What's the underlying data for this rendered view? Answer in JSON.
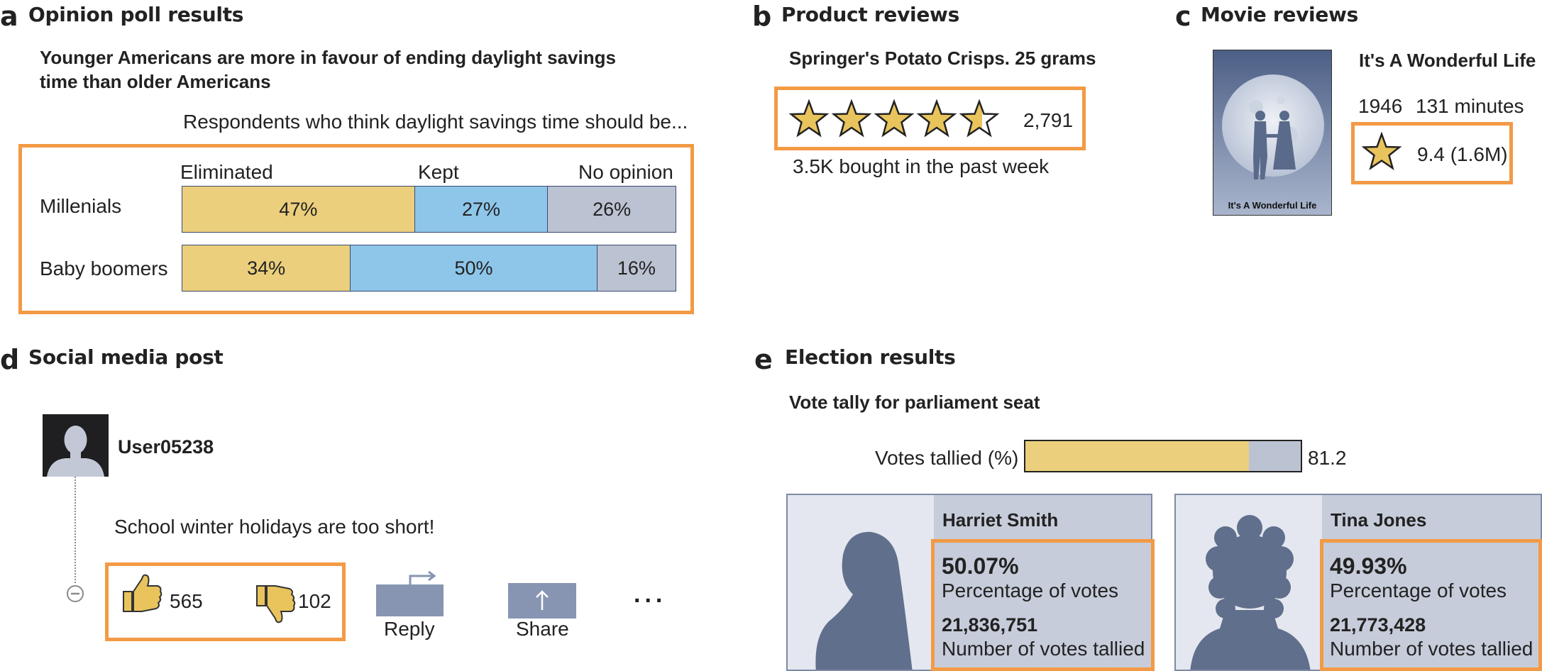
{
  "panels": {
    "a": {
      "letter": "a",
      "title": "Opinion poll results"
    },
    "b": {
      "letter": "b",
      "title": "Product reviews"
    },
    "c": {
      "letter": "c",
      "title": "Movie reviews"
    },
    "d": {
      "letter": "d",
      "title": "Social media post"
    },
    "e": {
      "letter": "e",
      "title": "Election results"
    }
  },
  "poll": {
    "headline_1": "Younger Americans are more in favour of ending daylight savings",
    "headline_2": "time than older Americans",
    "subtitle": "Respondents who think daylight savings time should be...",
    "columns": [
      "Eliminated",
      "Kept",
      "No opinion"
    ],
    "rows": [
      {
        "label": "Millenials",
        "values": [
          47,
          27,
          26
        ],
        "texts": [
          "47%",
          "27%",
          "26%"
        ]
      },
      {
        "label": "Baby boomers",
        "values": [
          34,
          50,
          16
        ],
        "texts": [
          "34%",
          "50%",
          "16%"
        ]
      }
    ],
    "colors": {
      "eliminated": "#EBCF7C",
      "kept": "#8EC6EA",
      "no_opinion": "#BBC2D2"
    }
  },
  "product": {
    "name": "Springer's Potato Crisps. 25 grams",
    "rating_stars": 4.5,
    "review_count": "2,791",
    "bought": "3.5K bought in the past week"
  },
  "movie": {
    "title": "It's A Wonderful Life",
    "year": "1946",
    "runtime": "131 minutes",
    "rating": "9.4 (1.6M)",
    "poster_caption": "It's A Wonderful Life"
  },
  "social": {
    "username": "User05238",
    "post_text": "School winter holidays are too short!",
    "likes": "565",
    "dislikes": "102",
    "reply_label": "Reply",
    "share_label": "Share",
    "more_label": "..."
  },
  "election": {
    "subtitle": "Vote tally for parliament seat",
    "tallied_label": "Votes tallied (%)",
    "tallied_value": 81.2,
    "tallied_text": "81.2",
    "candidates": [
      {
        "name": "Harriet Smith",
        "pct": "50.07%",
        "pct_label": "Percentage of votes",
        "votes": "21,836,751",
        "votes_label": "Number of votes tallied"
      },
      {
        "name": "Tina Jones",
        "pct": "49.93%",
        "pct_label": "Percentage of votes",
        "votes": "21,773,428",
        "votes_label": "Number of votes tallied"
      }
    ]
  },
  "colors": {
    "highlight": "#F39A45",
    "star": "#E9C45C",
    "slate": "#5F6F8C"
  }
}
